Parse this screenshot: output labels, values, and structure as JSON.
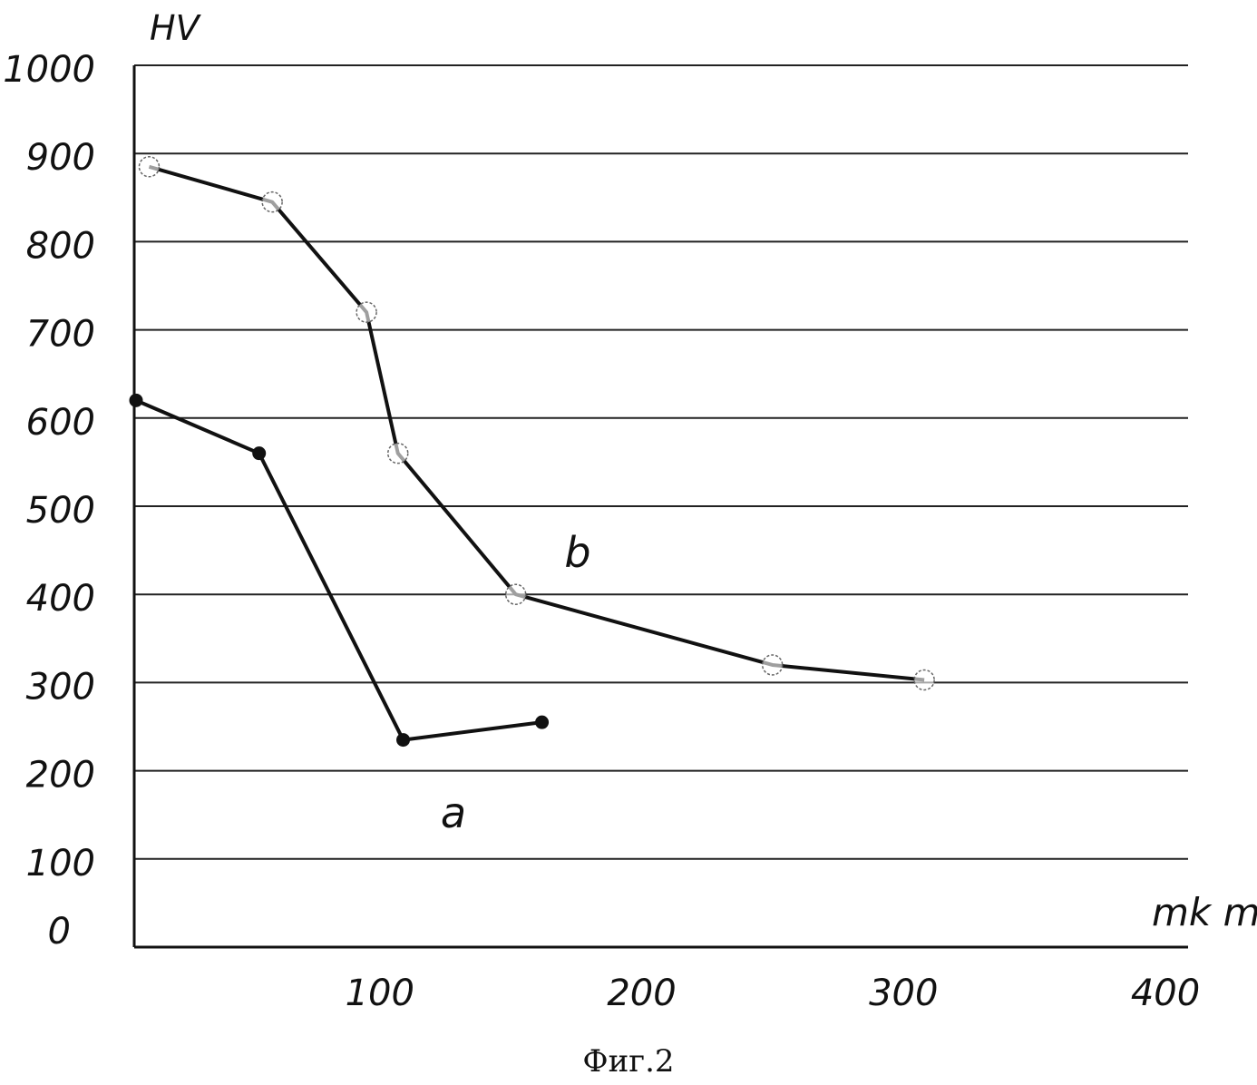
{
  "caption": "Фиг.2",
  "chart_data": {
    "type": "line",
    "xlabel": "mk m",
    "ylabel": "HV",
    "xlim": [
      0,
      400
    ],
    "ylim": [
      0,
      1000
    ],
    "x_ticks": [
      100,
      200,
      300,
      400
    ],
    "y_ticks": [
      0,
      100,
      200,
      300,
      400,
      500,
      600,
      700,
      800,
      900,
      1000
    ],
    "grid": "horizontal",
    "series": [
      {
        "name": "a",
        "marker": "filled-circle",
        "points": [
          [
            0,
            620
          ],
          [
            47,
            560
          ],
          [
            102,
            235
          ],
          [
            155,
            255
          ]
        ]
      },
      {
        "name": "b",
        "marker": "open-circle",
        "points": [
          [
            5,
            885
          ],
          [
            52,
            845
          ],
          [
            88,
            720
          ],
          [
            100,
            560
          ],
          [
            145,
            400
          ],
          [
            243,
            320
          ],
          [
            301,
            303
          ]
        ]
      }
    ]
  },
  "colors": {
    "ink": "#111111",
    "grid": "#222222",
    "background": "#ffffff"
  }
}
